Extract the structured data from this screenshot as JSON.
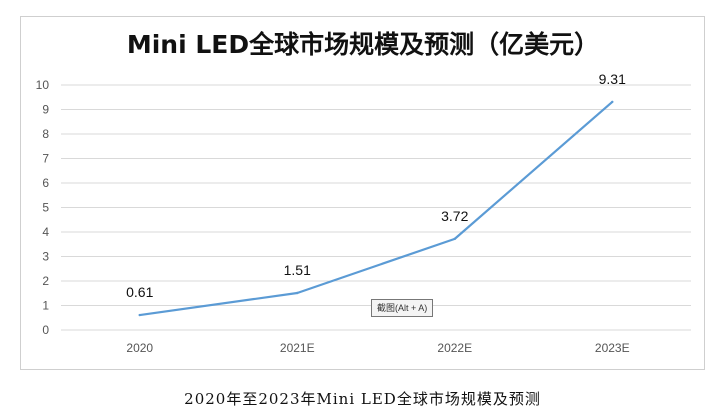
{
  "chart_data": {
    "type": "line",
    "title": "Mini LED全球市场规模及预测（亿美元）",
    "categories": [
      "2020",
      "2021E",
      "2022E",
      "2023E"
    ],
    "series": [
      {
        "name": "Mini LED全球市场规模",
        "values": [
          0.61,
          1.51,
          3.72,
          9.31
        ],
        "data_labels": [
          "0.61",
          "1.51",
          "3.72",
          "9.31"
        ]
      }
    ],
    "ylim": [
      0,
      10
    ],
    "yticks": [
      "0",
      "1",
      "2",
      "3",
      "4",
      "5",
      "6",
      "7",
      "8",
      "9",
      "10"
    ],
    "xlabel": "",
    "ylabel": "",
    "grid": true,
    "legend": "none"
  },
  "colors": {
    "line": "#5b9bd5",
    "grid": "#d9d9d9",
    "border": "#cfcfcf"
  },
  "tooltip": {
    "text": "截图(Alt + A)"
  },
  "caption": "2020年至2023年Mini LED全球市场规模及预测"
}
